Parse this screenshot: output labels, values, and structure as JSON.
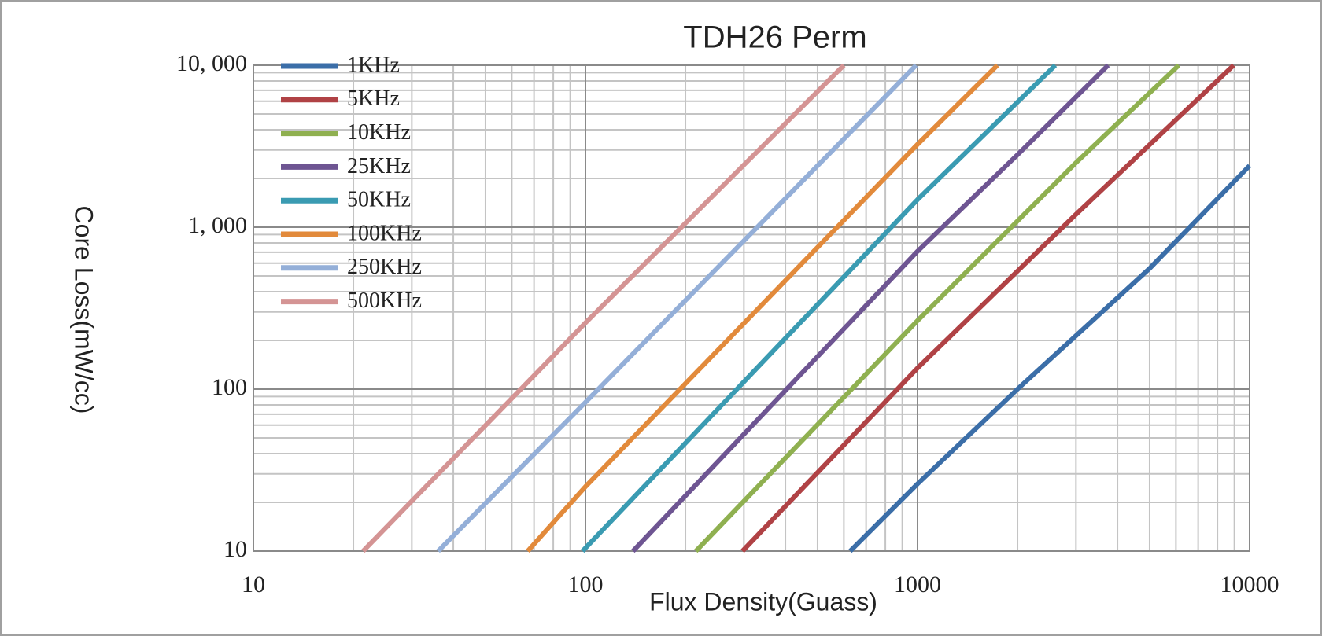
{
  "chart_data": {
    "type": "line",
    "title": "TDH26 Perm",
    "x_label": "Flux Density(Guass)",
    "y_label": "Core Loss(mW/cc)",
    "xscale": "log",
    "yscale": "log",
    "grid": true,
    "minor_grid": true,
    "legend": "upper left",
    "xlim": [
      10,
      10000
    ],
    "ylim": [
      10,
      10000
    ],
    "xticks": [
      10,
      100,
      1000,
      10000
    ],
    "yticks": [
      10,
      100,
      {
        "value": 1000,
        "label": "1, 000"
      },
      {
        "value": 10000,
        "label": "10, 000"
      }
    ],
    "series": [
      {
        "name": "1KHz",
        "color": "#3b6ea8",
        "x": [
          627,
          1000,
          2000,
          5000,
          10000
        ],
        "values": [
          10,
          26,
          100,
          557,
          2400
        ]
      },
      {
        "name": "5KHz",
        "color": "#b04245",
        "x": [
          297,
          1000,
          3000,
          8950
        ],
        "values": [
          10,
          135,
          1200,
          10000
        ]
      },
      {
        "name": "10KHz",
        "color": "#8fb050",
        "x": [
          215,
          1000,
          3000,
          6120
        ],
        "values": [
          10,
          265,
          2500,
          10000
        ]
      },
      {
        "name": "25KHz",
        "color": "#6e5592",
        "x": [
          139,
          1000,
          2000,
          3750
        ],
        "values": [
          10,
          710,
          2800,
          10000
        ]
      },
      {
        "name": "50KHz",
        "color": "#3a9bb2",
        "x": [
          98,
          1000,
          2600
        ],
        "values": [
          10,
          1480,
          10000
        ]
      },
      {
        "name": "100KHz",
        "color": "#e28a3b",
        "x": [
          67,
          100,
          1000,
          1740
        ],
        "values": [
          10,
          25,
          3250,
          10000
        ]
      },
      {
        "name": "250KHz",
        "color": "#94afd8",
        "x": [
          36,
          100,
          990
        ],
        "values": [
          10,
          83,
          10000
        ]
      },
      {
        "name": "500KHz",
        "color": "#d49494",
        "x": [
          21.4,
          100,
          600
        ],
        "values": [
          10,
          257,
          10000
        ]
      }
    ]
  }
}
